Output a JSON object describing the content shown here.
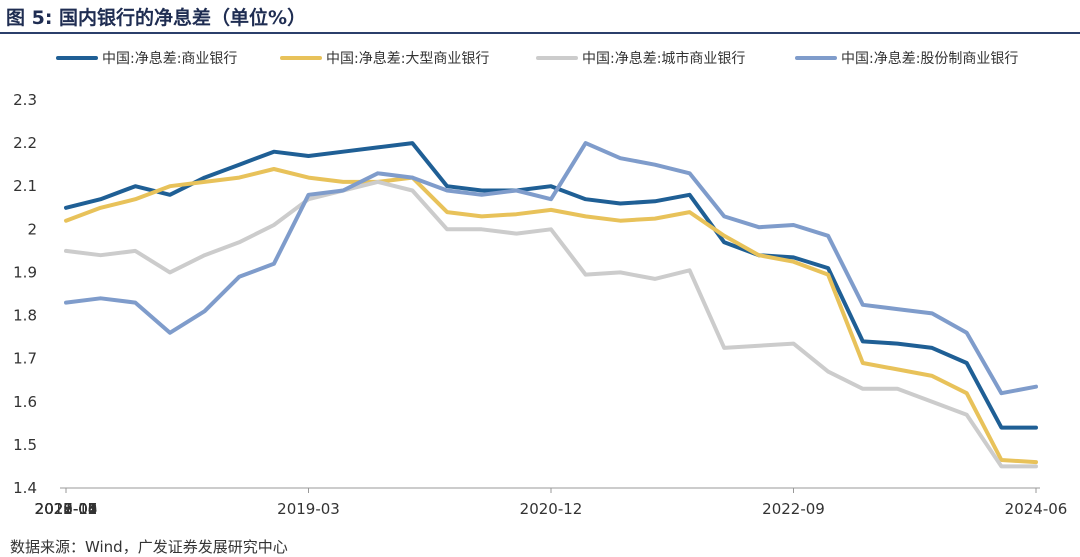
{
  "title": "图 5:  国内银行的净息差（单位%）",
  "source": "数据来源：Wind，广发证券发展研究中心",
  "colors": {
    "title_rule": "#2b3f6b",
    "axis": "#999999"
  },
  "chart_data": {
    "type": "line",
    "title": "",
    "xlabel": "",
    "ylabel": "",
    "ylim": [
      1.4,
      2.3
    ],
    "yticks": [
      "1.4",
      "1.5",
      "1.6",
      "1.7",
      "1.8",
      "1.9",
      "2",
      "2.1",
      "2.2",
      "2.3"
    ],
    "x": [
      "2017-06",
      "2017-09",
      "2017-12",
      "2018-03",
      "2018-06",
      "2018-09",
      "2018-12",
      "2019-03",
      "2019-06",
      "2019-09",
      "2019-12",
      "2020-03",
      "2020-06",
      "2020-09",
      "2020-12",
      "2021-03",
      "2021-06",
      "2021-09",
      "2021-12",
      "2022-03",
      "2022-06",
      "2022-09",
      "2022-12",
      "2023-03",
      "2023-06",
      "2023-09",
      "2023-12",
      "2024-03",
      "2024-06"
    ],
    "xticks": [
      "2017-06",
      "2018-01",
      "2018-08",
      "2019-03",
      "2019-10",
      "2020-05",
      "2020-12",
      "2021-07",
      "2022-02",
      "2022-09",
      "2023-04",
      "2023-11",
      "2024-06"
    ],
    "grid": false,
    "legend_position": "top",
    "series": [
      {
        "name": "中国:净息差:商业银行",
        "color": "#1f5f95",
        "values": [
          2.05,
          2.07,
          2.1,
          2.08,
          2.12,
          2.15,
          2.18,
          2.17,
          2.18,
          2.19,
          2.2,
          2.1,
          2.09,
          2.09,
          2.1,
          2.07,
          2.06,
          2.065,
          2.08,
          1.97,
          1.94,
          1.935,
          1.91,
          1.74,
          1.735,
          1.725,
          1.69,
          1.54,
          1.54
        ]
      },
      {
        "name": "中国:净息差:大型商业银行",
        "color": "#e8c25a",
        "values": [
          2.02,
          2.05,
          2.07,
          2.1,
          2.11,
          2.12,
          2.14,
          2.12,
          2.11,
          2.11,
          2.12,
          2.04,
          2.03,
          2.035,
          2.045,
          2.03,
          2.02,
          2.025,
          2.04,
          1.985,
          1.94,
          1.925,
          1.895,
          1.69,
          1.675,
          1.66,
          1.62,
          1.465,
          1.46
        ]
      },
      {
        "name": "中国:净息差:城市商业银行",
        "color": "#cccccc",
        "values": [
          1.95,
          1.94,
          1.95,
          1.9,
          1.94,
          1.97,
          2.01,
          2.07,
          2.09,
          2.11,
          2.09,
          2.0,
          2.0,
          1.99,
          2.0,
          1.895,
          1.9,
          1.885,
          1.905,
          1.725,
          1.73,
          1.735,
          1.67,
          1.63,
          1.63,
          1.6,
          1.57,
          1.45,
          1.45
        ]
      },
      {
        "name": "中国:净息差:股份制商业银行",
        "color": "#7f9ccb",
        "values": [
          1.83,
          1.84,
          1.83,
          1.76,
          1.81,
          1.89,
          1.92,
          2.08,
          2.09,
          2.13,
          2.12,
          2.09,
          2.08,
          2.09,
          2.07,
          2.2,
          2.165,
          2.15,
          2.13,
          2.03,
          2.005,
          2.01,
          1.985,
          1.825,
          1.815,
          1.805,
          1.76,
          1.62,
          1.635
        ]
      }
    ]
  }
}
